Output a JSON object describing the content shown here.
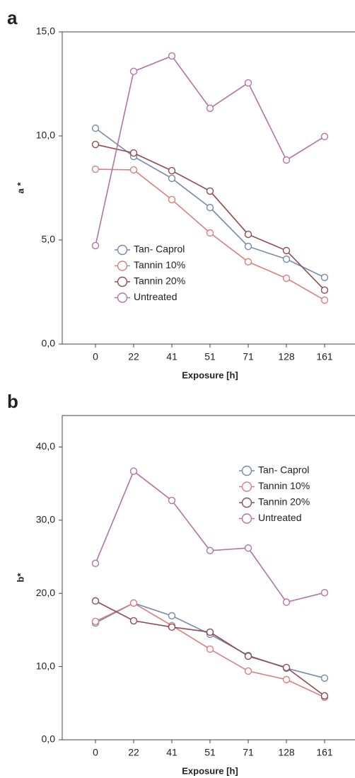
{
  "chart_data": [
    {
      "type": "line",
      "label": "a",
      "ylabel": "a *",
      "xlabel": "Exposure [h]",
      "categories": [
        "0",
        "22",
        "41",
        "51",
        "71",
        "128",
        "161"
      ],
      "ylim": [
        0,
        15
      ],
      "yticks": [
        {
          "value": 0,
          "label": "0,0"
        },
        {
          "value": 5,
          "label": "5,0"
        },
        {
          "value": 10,
          "label": "10,0"
        },
        {
          "value": 15,
          "label": "15,0"
        }
      ],
      "legend": "lower left",
      "series": [
        {
          "name": "Tan- Caprol",
          "color": "#7688ad",
          "values": [
            10.37,
            9.01,
            7.96,
            6.56,
            4.69,
            4.08,
            3.2
          ]
        },
        {
          "name": "Tannin 10%",
          "color": "#d97f7f",
          "values": [
            8.4,
            8.37,
            6.94,
            5.34,
            3.95,
            3.16,
            2.11
          ]
        },
        {
          "name": "Tannin 20%",
          "color": "#8e4c50",
          "values": [
            9.59,
            9.18,
            8.33,
            7.35,
            5.27,
            4.49,
            2.59
          ]
        },
        {
          "name": "Untreated",
          "color": "#b173a3",
          "values": [
            4.73,
            13.1,
            13.84,
            11.33,
            12.55,
            8.84,
            9.97
          ]
        }
      ]
    },
    {
      "type": "line",
      "label": "b",
      "ylabel": "b*",
      "xlabel": "Exposure [h]",
      "categories": [
        "0",
        "22",
        "41",
        "51",
        "71",
        "128",
        "161"
      ],
      "ylim": [
        0,
        44.3
      ],
      "yticks": [
        {
          "value": 0,
          "label": "0,0"
        },
        {
          "value": 10,
          "label": "10,0"
        },
        {
          "value": 20,
          "label": "20,0"
        },
        {
          "value": 30,
          "label": "30,0"
        },
        {
          "value": 40,
          "label": "40,0"
        }
      ],
      "legend": "upper right",
      "series": [
        {
          "name": "Tan- Caprol",
          "color": "#7688ad",
          "values": [
            15.97,
            18.68,
            16.94,
            14.42,
            11.52,
            9.78,
            8.42
          ]
        },
        {
          "name": "Tannin 10%",
          "color": "#d97f7f",
          "values": [
            16.17,
            18.68,
            15.6,
            12.39,
            9.39,
            8.23,
            5.81
          ]
        },
        {
          "name": "Tannin 20%",
          "color": "#8e4c50",
          "values": [
            18.97,
            16.26,
            15.4,
            14.71,
            11.42,
            9.87,
            6.0
          ]
        },
        {
          "name": "Untreated",
          "color": "#b173a3",
          "values": [
            24.1,
            36.7,
            32.7,
            25.85,
            26.2,
            18.8,
            20.1
          ]
        }
      ]
    }
  ]
}
